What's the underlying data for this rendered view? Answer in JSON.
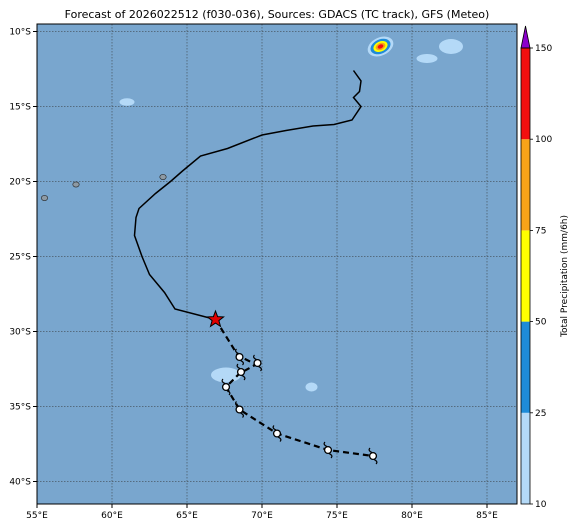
{
  "title": "Forecast of 2026022512 (f030-036), Sources: GDACS (TC track), GFS (Meteo)",
  "map": {
    "lon_range": [
      55,
      87
    ],
    "lat_range": [
      -41.5,
      -9.5
    ],
    "lon_ticks": [
      {
        "value": 55,
        "label": "55°E"
      },
      {
        "value": 60,
        "label": "60°E"
      },
      {
        "value": 65,
        "label": "65°E"
      },
      {
        "value": 70,
        "label": "70°E"
      },
      {
        "value": 75,
        "label": "75°E"
      },
      {
        "value": 80,
        "label": "80°E"
      },
      {
        "value": 85,
        "label": "85°E"
      }
    ],
    "lat_ticks": [
      {
        "value": -10,
        "label": "10°S"
      },
      {
        "value": -15,
        "label": "15°S"
      },
      {
        "value": -20,
        "label": "20°S"
      },
      {
        "value": -25,
        "label": "25°S"
      },
      {
        "value": -30,
        "label": "30°S"
      },
      {
        "value": -35,
        "label": "35°S"
      },
      {
        "value": -40,
        "label": "40°S"
      }
    ],
    "grid": true,
    "ocean_color": "#79a6ce",
    "land_color": "#8e9aa4",
    "precip_light_color": "#bcdcff",
    "past_track": [
      [
        76.1,
        -12.6
      ],
      [
        76.6,
        -13.3
      ],
      [
        76.5,
        -14.0
      ],
      [
        76.1,
        -14.4
      ],
      [
        76.6,
        -15.0
      ],
      [
        76.0,
        -15.9
      ],
      [
        74.8,
        -16.2
      ],
      [
        73.4,
        -16.3
      ],
      [
        71.6,
        -16.6
      ],
      [
        70.0,
        -16.9
      ],
      [
        67.7,
        -17.8
      ],
      [
        65.9,
        -18.3
      ],
      [
        64.7,
        -19.3
      ],
      [
        63.9,
        -20.0
      ],
      [
        62.9,
        -20.8
      ],
      [
        61.8,
        -21.8
      ],
      [
        61.6,
        -22.4
      ],
      [
        61.5,
        -23.6
      ],
      [
        62.0,
        -25.0
      ],
      [
        62.5,
        -26.2
      ],
      [
        63.5,
        -27.4
      ],
      [
        64.2,
        -28.5
      ],
      [
        66.9,
        -29.2
      ]
    ],
    "forecast_track": [
      [
        66.9,
        -29.2
      ],
      [
        68.4,
        -31.6
      ],
      [
        69.6,
        -32.2
      ],
      [
        68.5,
        -32.8
      ],
      [
        67.6,
        -33.7
      ],
      [
        68.5,
        -35.2
      ],
      [
        71.0,
        -36.8
      ],
      [
        74.4,
        -37.9
      ],
      [
        77.4,
        -38.3
      ]
    ],
    "current_position": {
      "lon": 66.9,
      "lat": -29.2,
      "marker": "red-star-icon"
    },
    "forecast_points": [
      {
        "lon": 68.5,
        "lat": -31.7
      },
      {
        "lon": 69.7,
        "lat": -32.1
      },
      {
        "lon": 68.6,
        "lat": -32.7
      },
      {
        "lon": 67.6,
        "lat": -33.7
      },
      {
        "lon": 68.5,
        "lat": -35.2
      },
      {
        "lon": 71.0,
        "lat": -36.8
      },
      {
        "lon": 74.4,
        "lat": -37.9
      },
      {
        "lon": 77.4,
        "lat": -38.3
      }
    ],
    "islands": [
      {
        "lon": 55.5,
        "lat": -21.1
      },
      {
        "lon": 57.6,
        "lat": -20.2
      },
      {
        "lon": 63.4,
        "lat": -19.7
      }
    ],
    "precip_areas": [
      {
        "lon": 77.9,
        "lat": -11.0,
        "rx": 0.9,
        "ry": 0.6,
        "level": 150
      },
      {
        "lon": 67.6,
        "lat": -32.9,
        "rx": 1.0,
        "ry": 0.5,
        "level": 10
      },
      {
        "lon": 61.0,
        "lat": -14.7,
        "rx": 0.5,
        "ry": 0.25,
        "level": 10
      },
      {
        "lon": 82.6,
        "lat": -11.0,
        "rx": 0.8,
        "ry": 0.5,
        "level": 10
      },
      {
        "lon": 81.0,
        "lat": -11.8,
        "rx": 0.7,
        "ry": 0.3,
        "level": 10
      },
      {
        "lon": 73.3,
        "lat": -33.7,
        "rx": 0.4,
        "ry": 0.3,
        "level": 10
      }
    ]
  },
  "colorbar": {
    "label": "Total Precipitation (mm/6h)",
    "levels": [
      10,
      25,
      50,
      75,
      100,
      150
    ],
    "tick_labels": [
      "10",
      "25",
      "50",
      "75",
      "100",
      "150"
    ],
    "colors": [
      "#b4d9f7",
      "#1e8bd8",
      "#ffff00",
      "#f7a319",
      "#f20f0f"
    ],
    "extend_color": "#8b00cc"
  }
}
